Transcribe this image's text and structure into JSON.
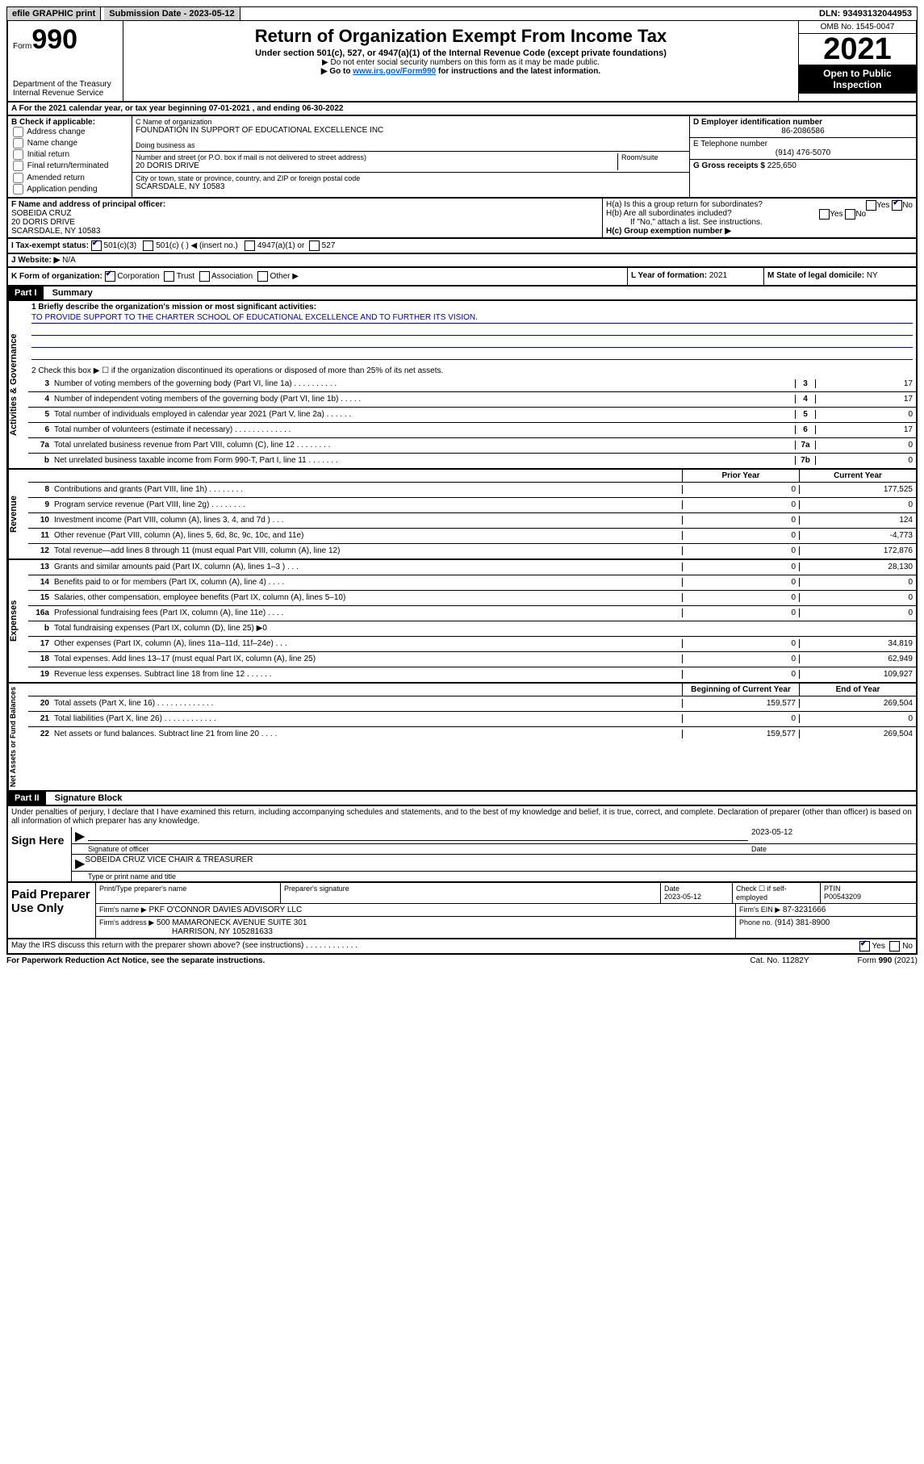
{
  "topbar": {
    "efile": "efile GRAPHIC print",
    "submission_label": "Submission Date - ",
    "submission_date": "2023-05-12",
    "dln_label": "DLN: ",
    "dln": "93493132044953"
  },
  "header": {
    "form_prefix": "Form",
    "form_number": "990",
    "dept": "Department of the Treasury",
    "irs": "Internal Revenue Service",
    "title": "Return of Organization Exempt From Income Tax",
    "subtitle": "Under section 501(c), 527, or 4947(a)(1) of the Internal Revenue Code (except private foundations)",
    "note1": "▶ Do not enter social security numbers on this form as it may be made public.",
    "note2": "▶ Go to www.irs.gov/Form990 for instructions and the latest information.",
    "omb": "OMB No. 1545-0047",
    "year": "2021",
    "open": "Open to Public Inspection"
  },
  "a": "For the 2021 calendar year, or tax year beginning 07-01-2021   , and ending 06-30-2022",
  "b": {
    "label": "B Check if applicable:",
    "opts": [
      "Address change",
      "Name change",
      "Initial return",
      "Final return/terminated",
      "Amended return",
      "Application pending"
    ]
  },
  "c": {
    "name_label": "C Name of organization",
    "name": "FOUNDATION IN SUPPORT OF EDUCATIONAL EXCELLENCE INC",
    "dba_label": "Doing business as",
    "street_label": "Number and street (or P.O. box if mail is not delivered to street address)",
    "room_label": "Room/suite",
    "street": "20 DORIS DRIVE",
    "city_label": "City or town, state or province, country, and ZIP or foreign postal code",
    "city": "SCARSDALE, NY  10583"
  },
  "d": {
    "ein_label": "D Employer identification number",
    "ein": "86-2086586",
    "tel_label": "E Telephone number",
    "tel": "(914) 476-5070",
    "gross_label": "G Gross receipts $",
    "gross": "225,650"
  },
  "f": {
    "label": "F  Name and address of principal officer:",
    "name": "SOBEIDA CRUZ",
    "addr1": "20 DORIS DRIVE",
    "addr2": "SCARSDALE, NY  10583"
  },
  "h": {
    "a_label": "H(a)  Is this a group return for subordinates?",
    "b_label": "H(b)  Are all subordinates included?",
    "note": "If \"No,\" attach a list. See instructions.",
    "c_label": "H(c)  Group exemption number ▶"
  },
  "i": {
    "label": "I  Tax-exempt status:",
    "opts": [
      "501(c)(3)",
      "501(c) (   ) ◀ (insert no.)",
      "4947(a)(1) or",
      "527"
    ]
  },
  "j": {
    "label": "J  Website: ▶",
    "val": "N/A"
  },
  "k": {
    "label": "K Form of organization:",
    "opts": [
      "Corporation",
      "Trust",
      "Association",
      "Other ▶"
    ],
    "l_label": "L Year of formation:",
    "l_val": "2021",
    "m_label": "M State of legal domicile:",
    "m_val": "NY"
  },
  "part1": {
    "header": "Part I",
    "title": "Summary",
    "mission_label": "1  Briefly describe the organization's mission or most significant activities:",
    "mission": "TO PROVIDE SUPPORT TO THE CHARTER SCHOOL OF EDUCATIONAL EXCELLENCE AND TO FURTHER ITS VISION.",
    "line2": "2   Check this box ▶ ☐  if the organization discontinued its operations or disposed of more than 25% of its net assets."
  },
  "activities": {
    "side": "Activities & Governance",
    "rows": [
      {
        "n": "3",
        "d": "Number of voting members of the governing body (Part VI, line 1a)   .    .    .    .    .    .    .    .    .    .",
        "box": "3",
        "v": "17"
      },
      {
        "n": "4",
        "d": "Number of independent voting members of the governing body (Part VI, line 1b)   .    .    .    .    .",
        "box": "4",
        "v": "17"
      },
      {
        "n": "5",
        "d": "Total number of individuals employed in calendar year 2021 (Part V, line 2a)   .    .    .    .    .    .",
        "box": "5",
        "v": "0"
      },
      {
        "n": "6",
        "d": "Total number of volunteers (estimate if necessary)   .    .    .    .    .    .    .    .    .    .    .    .    .",
        "box": "6",
        "v": "17"
      },
      {
        "n": "7a",
        "d": "Total unrelated business revenue from Part VIII, column (C), line 12   .    .    .    .    .    .    .    .",
        "box": "7a",
        "v": "0"
      },
      {
        "n": "b",
        "d": "Net unrelated business taxable income from Form 990-T, Part I, line 11   .    .    .    .    .    .    .",
        "box": "7b",
        "v": "0"
      }
    ]
  },
  "cols": {
    "prior": "Prior Year",
    "current": "Current Year"
  },
  "revenue": {
    "side": "Revenue",
    "rows": [
      {
        "n": "8",
        "d": "Contributions and grants (Part VIII, line 1h)   .    .    .    .    .    .    .    .",
        "p": "0",
        "c": "177,525"
      },
      {
        "n": "9",
        "d": "Program service revenue (Part VIII, line 2g)   .    .    .    .    .    .    .    .",
        "p": "0",
        "c": "0"
      },
      {
        "n": "10",
        "d": "Investment income (Part VIII, column (A), lines 3, 4, and 7d )   .    .    .",
        "p": "0",
        "c": "124"
      },
      {
        "n": "11",
        "d": "Other revenue (Part VIII, column (A), lines 5, 6d, 8c, 9c, 10c, and 11e)",
        "p": "0",
        "c": "-4,773"
      },
      {
        "n": "12",
        "d": "Total revenue—add lines 8 through 11 (must equal Part VIII, column (A), line 12)",
        "p": "0",
        "c": "172,876"
      }
    ]
  },
  "expenses": {
    "side": "Expenses",
    "rows": [
      {
        "n": "13",
        "d": "Grants and similar amounts paid (Part IX, column (A), lines 1–3 )   .    .    .",
        "p": "0",
        "c": "28,130"
      },
      {
        "n": "14",
        "d": "Benefits paid to or for members (Part IX, column (A), line 4)   .    .    .    .",
        "p": "0",
        "c": "0"
      },
      {
        "n": "15",
        "d": "Salaries, other compensation, employee benefits (Part IX, column (A), lines 5–10)",
        "p": "0",
        "c": "0"
      },
      {
        "n": "16a",
        "d": "Professional fundraising fees (Part IX, column (A), line 11e)   .    .    .    .",
        "p": "0",
        "c": "0"
      },
      {
        "n": "b",
        "d": "Total fundraising expenses (Part IX, column (D), line 25) ▶0",
        "p": "",
        "c": "",
        "grey": true
      },
      {
        "n": "17",
        "d": "Other expenses (Part IX, column (A), lines 11a–11d, 11f–24e)   .    .    .",
        "p": "0",
        "c": "34,819"
      },
      {
        "n": "18",
        "d": "Total expenses. Add lines 13–17 (must equal Part IX, column (A), line 25)",
        "p": "0",
        "c": "62,949"
      },
      {
        "n": "19",
        "d": "Revenue less expenses. Subtract line 18 from line 12   .    .    .    .    .    .",
        "p": "0",
        "c": "109,927"
      }
    ]
  },
  "cols2": {
    "beg": "Beginning of Current Year",
    "end": "End of Year"
  },
  "netassets": {
    "side": "Net Assets or Fund Balances",
    "rows": [
      {
        "n": "20",
        "d": "Total assets (Part X, line 16)   .    .    .    .    .    .    .    .    .    .    .    .    .",
        "p": "159,577",
        "c": "269,504"
      },
      {
        "n": "21",
        "d": "Total liabilities (Part X, line 26)   .    .    .    .    .    .    .    .    .    .    .    .",
        "p": "0",
        "c": "0"
      },
      {
        "n": "22",
        "d": "Net assets or fund balances. Subtract line 21 from line 20   .    .    .    .",
        "p": "159,577",
        "c": "269,504"
      }
    ]
  },
  "part2": {
    "header": "Part II",
    "title": "Signature Block",
    "note": "Under penalties of perjury, I declare that I have examined this return, including accompanying schedules and statements, and to the best of my knowledge and belief, it is true, correct, and complete. Declaration of preparer (other than officer) is based on all information of which preparer has any knowledge."
  },
  "sign": {
    "label": "Sign Here",
    "sig_label": "Signature of officer",
    "date_label": "Date",
    "date": "2023-05-12",
    "name": "SOBEIDA CRUZ  VICE CHAIR & TREASURER",
    "name_label": "Type or print name and title"
  },
  "paid": {
    "label": "Paid Preparer Use Only",
    "h1": "Print/Type preparer's name",
    "h2": "Preparer's signature",
    "h3": "Date",
    "date": "2023-05-12",
    "check_label": "Check ☐ if self-employed",
    "ptin_label": "PTIN",
    "ptin": "P00543209",
    "firm_label": "Firm's name      ▶",
    "firm": "PKF O'CONNOR DAVIES ADVISORY LLC",
    "ein_label": "Firm's EIN ▶",
    "ein": "87-3231666",
    "addr_label": "Firm's address ▶",
    "addr1": "500 MAMARONECK AVENUE SUITE 301",
    "addr2": "HARRISON, NY 105281633",
    "phone_label": "Phone no.",
    "phone": "(914) 381-8900"
  },
  "footer": {
    "may": "May the IRS discuss this return with the preparer shown above? (see instructions)   .    .    .    .    .    .    .    .    .    .    .    .",
    "yes": "Yes",
    "no": "No",
    "paperwork": "For Paperwork Reduction Act Notice, see the separate instructions.",
    "cat": "Cat. No. 11282Y",
    "form": "Form 990 (2021)"
  }
}
